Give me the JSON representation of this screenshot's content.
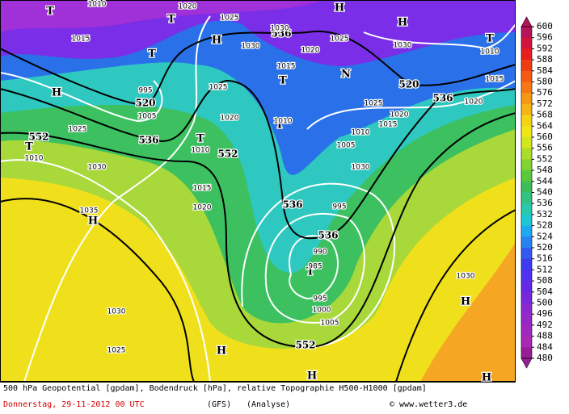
{
  "map_labels": [
    "552",
    "536",
    "520",
    "552",
    "536",
    "536",
    "552",
    "536",
    "520",
    "536",
    "T",
    "T",
    "T",
    "T",
    "T",
    "T",
    "T",
    "T",
    "T",
    "H",
    "H",
    "H",
    "H",
    "H",
    "N",
    "H",
    "H",
    "H",
    "H",
    "1015",
    "1010",
    "1020",
    "1025",
    "1030",
    "1030",
    "1025",
    "1020",
    "1015",
    "1030",
    "1010",
    "1015",
    "1025",
    "1020",
    "1015",
    "1020",
    "1010",
    "1005",
    "1010",
    "995",
    "1005",
    "1025",
    "1020",
    "1010",
    "1025",
    "1010",
    "1030",
    "1015",
    "1020",
    "1035",
    "1030",
    "995",
    "990",
    "985",
    "995",
    "1000",
    "1005",
    "1030",
    "1025",
    "1030"
  ],
  "colorbar": {
    "ticks": [
      600,
      596,
      592,
      588,
      584,
      580,
      576,
      572,
      568,
      564,
      560,
      556,
      552,
      548,
      544,
      540,
      536,
      532,
      528,
      524,
      520,
      516,
      512,
      508,
      504,
      500,
      496,
      492,
      488,
      484,
      480
    ],
    "colors": [
      "#b4145a",
      "#d2143c",
      "#e61e1e",
      "#f03c14",
      "#f55a14",
      "#f57814",
      "#f59614",
      "#f5b414",
      "#f5d214",
      "#f0e614",
      "#d2e61e",
      "#aadc28",
      "#82d232",
      "#5ac83c",
      "#3cbe5a",
      "#32c382",
      "#28c8aa",
      "#1ec8d2",
      "#1eaaf0",
      "#2882f0",
      "#325af0",
      "#3c3cf0",
      "#5032f0",
      "#6428e6",
      "#7828dc",
      "#8c28d2",
      "#9628c8",
      "#a028be",
      "#aa28b4",
      "#961e96"
    ]
  },
  "footer": {
    "caption": "500 hPa Geopotential [gpdam], Bodendruck [hPa], relative Topographie H500-H1000 [gpdam]",
    "date": "Donnerstag, 29-11-2012  00 UTC",
    "model": "(GFS)",
    "run": "(Analyse)",
    "source": "© www.wetter3.de"
  }
}
